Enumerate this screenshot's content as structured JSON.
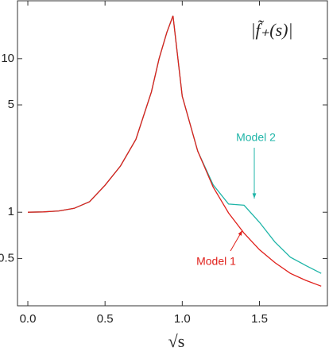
{
  "chart_data": {
    "type": "line",
    "title": "|f̃₊(s)|",
    "x_label": "√s",
    "x": [
      0,
      0.1,
      0.2,
      0.3,
      0.4,
      0.5,
      0.6,
      0.7,
      0.8,
      0.85,
      0.9,
      0.94,
      0.97,
      1.0,
      1.1,
      1.2,
      1.3,
      1.4,
      1.5,
      1.6,
      1.7,
      1.8,
      1.9
    ],
    "series": [
      {
        "name": "Model 2",
        "color": "#1fb5a8",
        "values": [
          1.0,
          1.005,
          1.02,
          1.06,
          1.17,
          1.5,
          2.0,
          2.98,
          6.07,
          10,
          14.8,
          19,
          10.4,
          5.7,
          2.5,
          1.51,
          1.13,
          1.11,
          0.86,
          0.64,
          0.51,
          0.45,
          0.4
        ]
      },
      {
        "name": "Model 1",
        "color": "#e0201b",
        "values": [
          1.0,
          1.005,
          1.02,
          1.06,
          1.17,
          1.5,
          2.0,
          2.98,
          6.07,
          10,
          14.8,
          19,
          10.4,
          5.7,
          2.5,
          1.46,
          0.99,
          0.73,
          0.57,
          0.47,
          0.4,
          0.36,
          0.33
        ]
      }
    ],
    "xlim": [
      -0.067,
      1.94
    ],
    "ylim": [
      0.246,
      23.8
    ],
    "log_y": true,
    "xticks": [
      {
        "value": 0,
        "label": "0.0"
      },
      0.5,
      {
        "value": 1,
        "label": "1.0"
      },
      1.5
    ],
    "yticks": [
      0.5,
      1,
      5,
      10
    ],
    "grid": false
  }
}
